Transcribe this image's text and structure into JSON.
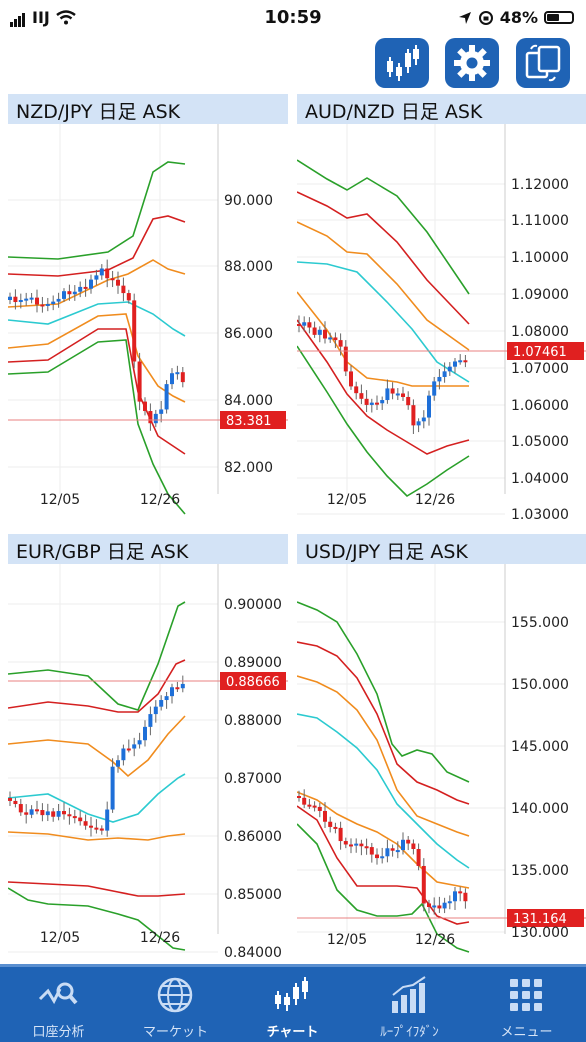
{
  "status_bar": {
    "carrier": "IIJ",
    "time": "10:59",
    "battery": "48%"
  },
  "toolbar": {
    "icons": [
      "candlestick-chart-icon",
      "gear-icon",
      "rotate-device-icon"
    ]
  },
  "panels": [
    {
      "title": "NZD/JPY 日足 ASK",
      "y_ticks": [
        "90.000",
        "88.000",
        "86.000",
        "84.000",
        "82.000"
      ],
      "x_ticks": [
        "12/05",
        "12/26"
      ],
      "current_price": "83.381"
    },
    {
      "title": "AUD/NZD 日足 ASK",
      "y_ticks": [
        "1.12000",
        "1.11000",
        "1.10000",
        "1.09000",
        "1.08000",
        "1.07000",
        "1.06000",
        "1.05000",
        "1.04000",
        "1.03000"
      ],
      "x_ticks": [
        "12/05",
        "12/26"
      ],
      "current_price": "1.07461"
    },
    {
      "title": "EUR/GBP 日足 ASK",
      "y_ticks": [
        "0.90000",
        "0.89000",
        "0.88000",
        "0.87000",
        "0.86000",
        "0.85000",
        "0.84000"
      ],
      "x_ticks": [
        "12/05",
        "12/26"
      ],
      "current_price": "0.88666"
    },
    {
      "title": "USD/JPY 日足 ASK",
      "y_ticks": [
        "155.000",
        "150.000",
        "145.000",
        "140.000",
        "135.000",
        "130.000"
      ],
      "x_ticks": [
        "12/05",
        "12/26"
      ],
      "current_price": "131.164"
    }
  ],
  "tabs": [
    {
      "label": "口座分析",
      "icon": "account-analysis-icon",
      "active": false
    },
    {
      "label": "マーケット",
      "icon": "globe-icon",
      "active": false
    },
    {
      "label": "チャート",
      "icon": "candlestick-chart-icon",
      "active": true
    },
    {
      "label": "ﾙｰﾌﾟｲﾌﾀﾞﾝ",
      "icon": "bar-chart-icon",
      "active": false
    },
    {
      "label": "メニュー",
      "icon": "grid-menu-icon",
      "active": false
    }
  ],
  "colors": {
    "accent": "#1f63b5",
    "header_bg": "#d3e3f6",
    "bull": "#1e6fd8",
    "bear": "#e02020",
    "band_outer": "#2aa02a",
    "band_mid": "#d42020",
    "band_inner": "#f08c1e",
    "ma": "#2ccad0",
    "price_tag": "#e02020"
  }
}
